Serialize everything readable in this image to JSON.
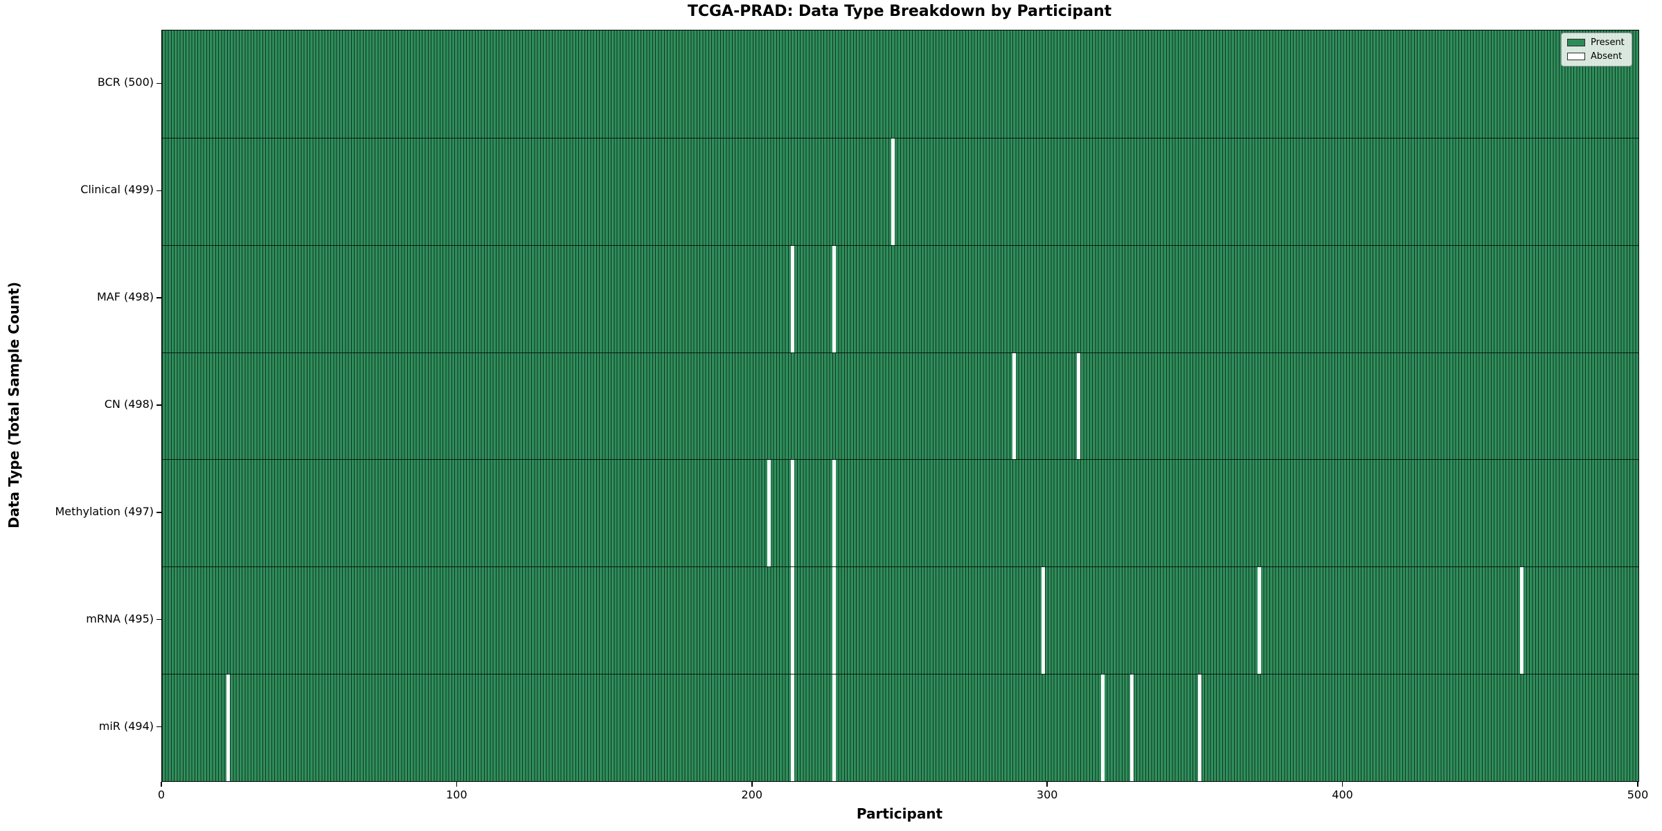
{
  "chart_data": {
    "type": "heatmap",
    "title": "TCGA-PRAD: Data Type Breakdown by Participant",
    "xlabel": "Participant",
    "ylabel": "Data Type (Total Sample Count)",
    "x_range": [
      0,
      500
    ],
    "x_ticks": [
      "0",
      "100",
      "200",
      "300",
      "400",
      "500"
    ],
    "n_participants": 500,
    "grid": false,
    "legend_position": "upper right",
    "legend_entries": [
      {
        "label": "Present",
        "color": "#2e8b57"
      },
      {
        "label": "Absent",
        "color": "#ffffff"
      }
    ],
    "rows": [
      {
        "label": "BCR (500)",
        "data_type": "BCR",
        "count": 500,
        "absent_participants": []
      },
      {
        "label": "Clinical (499)",
        "data_type": "Clinical",
        "count": 499,
        "absent_participants": [
          247
        ]
      },
      {
        "label": "MAF (498)",
        "data_type": "MAF",
        "count": 498,
        "absent_participants": [
          213,
          227
        ]
      },
      {
        "label": "CN (498)",
        "data_type": "CN",
        "count": 498,
        "absent_participants": [
          288,
          310
        ]
      },
      {
        "label": "Methylation (497)",
        "data_type": "Methylation",
        "count": 497,
        "absent_participants": [
          205,
          213,
          227
        ]
      },
      {
        "label": "mRNA (495)",
        "data_type": "mRNA",
        "count": 495,
        "absent_participants": [
          213,
          227,
          298,
          371,
          460
        ]
      },
      {
        "label": "miR (494)",
        "data_type": "miR",
        "count": 494,
        "absent_participants": [
          22,
          213,
          227,
          318,
          328,
          351
        ]
      }
    ],
    "colors": {
      "present": "#2e8b57",
      "present_fill": "#2f8f5c",
      "absent": "#ffffff",
      "cell_edge": "#12331f",
      "row_divider": "rgba(0,0,0,0.8)"
    }
  }
}
